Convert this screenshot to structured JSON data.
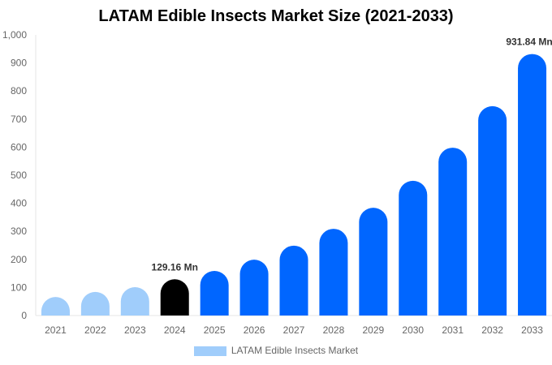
{
  "chart_data": {
    "type": "bar",
    "title": "LATAM Edible Insects Market Size (2021-2033)",
    "categories": [
      "2021",
      "2022",
      "2023",
      "2024",
      "2025",
      "2026",
      "2027",
      "2028",
      "2029",
      "2030",
      "2031",
      "2032",
      "2033"
    ],
    "series": [
      {
        "name": "LATAM Edible Insects Market",
        "values": [
          66,
          84,
          101,
          129.16,
          159,
          199,
          249,
          309,
          384,
          480,
          598,
          746,
          931.84
        ]
      }
    ],
    "ylim": [
      0,
      1000
    ],
    "yticks": [
      "0",
      "100",
      "200",
      "300",
      "400",
      "500",
      "600",
      "700",
      "800",
      "900",
      "1,000"
    ],
    "data_labels": {
      "2024": "129.16 Mn",
      "2033": "931.84 Mn"
    },
    "colors": {
      "historical": "#a0cdfb",
      "current": "#000000",
      "forecast": "#0066ff"
    },
    "grid": false,
    "legend": "bottom"
  }
}
